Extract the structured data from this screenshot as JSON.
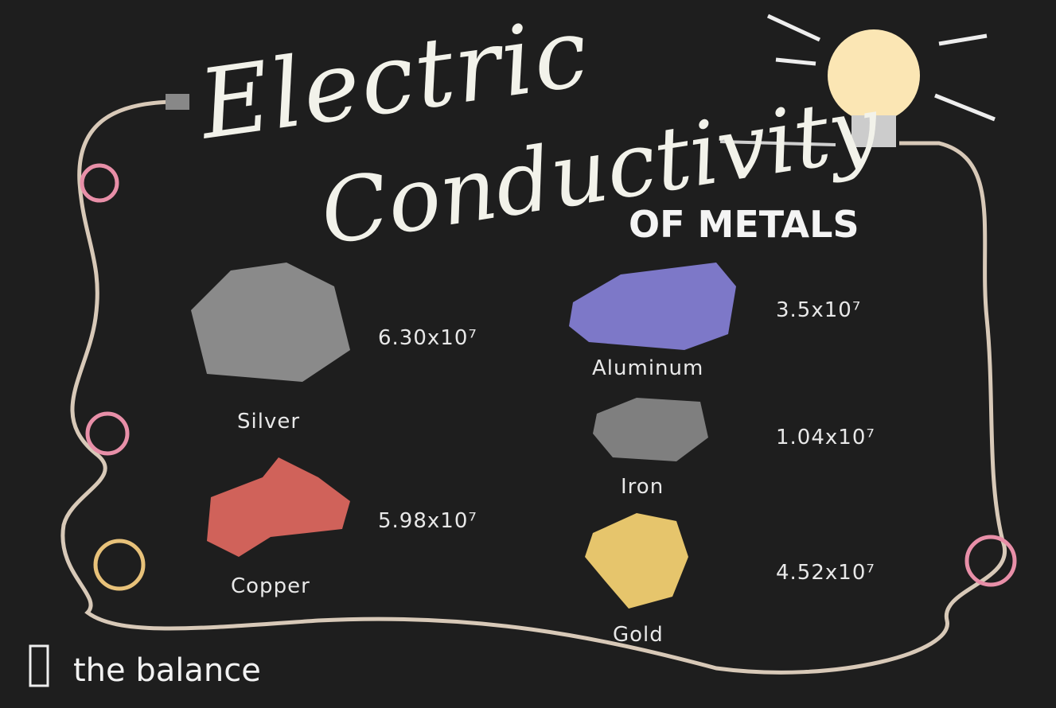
{
  "header": {
    "title_line1": "Electric",
    "title_line2": "Conductivity",
    "subtitle": "OF METALS"
  },
  "metals": [
    {
      "name": "Silver",
      "value": "6.30x10⁷"
    },
    {
      "name": "Copper",
      "value": "5.98x10⁷"
    },
    {
      "name": "Aluminum",
      "value": "3.5x10⁷"
    },
    {
      "name": "Iron",
      "value": "1.04x10⁷"
    },
    {
      "name": "Gold",
      "value": "4.52x10⁷"
    }
  ],
  "brand": "the balance"
}
